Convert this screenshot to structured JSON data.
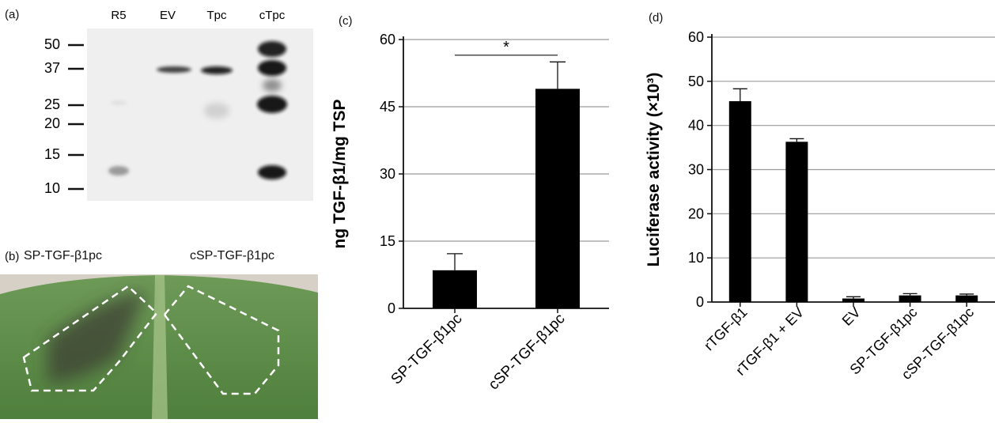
{
  "panel_a": {
    "label": "(a)",
    "lanes": [
      "R5",
      "EV",
      "Tpc",
      "cTpc"
    ],
    "markers": [
      "50",
      "37",
      "25",
      "20",
      "15",
      "10"
    ]
  },
  "panel_b": {
    "label": "(b)",
    "left_label": "SP-TGF-β1pc",
    "right_label": "cSP-TGF-β1pc"
  },
  "chart_data": [
    {
      "type": "bar",
      "panel": "(c)",
      "categories": [
        "SP-TGF-β1pc",
        "cSP-TGF-β1pc"
      ],
      "values": [
        8.5,
        49
      ],
      "errors": [
        3.7,
        6
      ],
      "ylabel": "ng TGF-β1/mg TSP",
      "ylim": [
        0,
        60
      ],
      "yticks": [
        0,
        15,
        30,
        45,
        60
      ],
      "significance": "*",
      "grid": true,
      "color": "#000000"
    },
    {
      "type": "bar",
      "panel": "(d)",
      "categories": [
        "rTGF-β1",
        "rTGF-β1 + EV",
        "EV",
        "SP-TGF-β1pc",
        "cSP-TGF-β1pc"
      ],
      "values": [
        45.5,
        36.3,
        0.8,
        1.5,
        1.5
      ],
      "errors": [
        2.8,
        0.7,
        0.4,
        0.4,
        0.3
      ],
      "ylabel": "Luciferase activity (×10³)",
      "ylim": [
        0,
        60
      ],
      "yticks": [
        0,
        10,
        20,
        30,
        40,
        50,
        60
      ],
      "grid": true,
      "color": "#000000"
    }
  ]
}
